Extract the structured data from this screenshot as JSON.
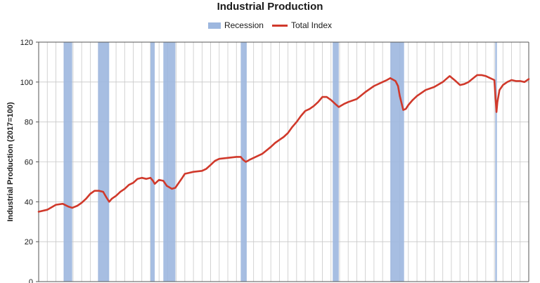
{
  "chart_data": {
    "type": "line",
    "title": "Industrial Production",
    "xlabel": "",
    "ylabel": "Industrial Production (2017=100)",
    "ylim": [
      0,
      120
    ],
    "yticks": [
      0,
      20,
      40,
      60,
      80,
      100,
      120
    ],
    "xlim": [
      1967,
      2024
    ],
    "grid": true,
    "legend_position": "top-center",
    "legend": [
      {
        "name": "Recession",
        "kind": "band",
        "color": "#9db7df"
      },
      {
        "name": "Total Index",
        "kind": "line",
        "color": "#d0392b"
      }
    ],
    "recessions": [
      [
        1969.9,
        1970.9
      ],
      [
        1973.9,
        1975.2
      ],
      [
        1980.0,
        1980.5
      ],
      [
        1981.5,
        1982.9
      ],
      [
        1990.5,
        1991.2
      ],
      [
        2001.2,
        2001.9
      ],
      [
        2007.9,
        2009.5
      ],
      [
        2020.1,
        2020.3
      ]
    ],
    "series": [
      {
        "name": "Total Index",
        "color": "#d0392b",
        "x": [
          1967.0,
          1968.0,
          1969.0,
          1969.8,
          1970.5,
          1970.9,
          1971.5,
          1972.0,
          1972.5,
          1973.0,
          1973.5,
          1974.0,
          1974.5,
          1974.9,
          1975.2,
          1975.5,
          1976.0,
          1976.5,
          1977.0,
          1977.5,
          1978.0,
          1978.5,
          1979.0,
          1979.5,
          1980.0,
          1980.3,
          1980.5,
          1981.0,
          1981.5,
          1981.9,
          1982.5,
          1982.9,
          1983.3,
          1983.7,
          1984.0,
          1984.5,
          1985.0,
          1986.0,
          1986.5,
          1987.0,
          1987.5,
          1988.0,
          1989.0,
          1990.0,
          1990.5,
          1990.8,
          1991.1,
          1991.5,
          1992.0,
          1993.0,
          1994.0,
          1994.5,
          1995.0,
          1995.5,
          1996.0,
          1996.5,
          1997.0,
          1997.5,
          1998.0,
          1998.5,
          1999.0,
          1999.5,
          2000.0,
          2000.5,
          2001.0,
          2001.5,
          2001.9,
          2002.5,
          2003.0,
          2004.0,
          2005.0,
          2006.0,
          2007.0,
          2007.5,
          2007.9,
          2008.5,
          2008.8,
          2009.0,
          2009.4,
          2009.7,
          2010.0,
          2010.5,
          2011.0,
          2012.0,
          2013.0,
          2014.0,
          2014.8,
          2015.5,
          2016.0,
          2016.5,
          2017.0,
          2018.0,
          2018.5,
          2019.0,
          2019.5,
          2020.0,
          2020.25,
          2020.35,
          2020.6,
          2021.0,
          2021.5,
          2022.0,
          2022.5,
          2023.0,
          2023.5,
          2024.0
        ],
        "values": [
          35.0,
          36.0,
          38.5,
          39.0,
          37.5,
          37.0,
          38.0,
          39.5,
          41.5,
          44.0,
          45.5,
          45.5,
          45.0,
          42.0,
          40.0,
          41.5,
          43.0,
          45.0,
          46.5,
          48.5,
          49.5,
          51.5,
          52.0,
          51.5,
          52.0,
          50.5,
          49.0,
          51.0,
          50.5,
          48.0,
          46.5,
          47.0,
          49.5,
          52.0,
          54.0,
          54.5,
          55.0,
          55.5,
          56.5,
          58.5,
          60.5,
          61.5,
          62.0,
          62.5,
          62.5,
          61.0,
          60.0,
          61.0,
          62.0,
          64.0,
          67.5,
          69.5,
          71.0,
          72.5,
          74.5,
          77.5,
          80.0,
          83.0,
          85.5,
          86.5,
          88.0,
          90.0,
          92.5,
          92.5,
          91.0,
          89.0,
          87.5,
          89.0,
          90.0,
          91.5,
          95.0,
          98.0,
          100.0,
          101.0,
          102.0,
          100.5,
          98.0,
          93.0,
          86.0,
          86.5,
          88.5,
          91.0,
          93.0,
          96.0,
          97.5,
          100.0,
          103.0,
          100.5,
          98.5,
          99.0,
          100.0,
          103.5,
          103.5,
          103.0,
          102.0,
          101.0,
          85.0,
          90.0,
          96.0,
          98.5,
          100.0,
          101.0,
          100.5,
          100.5,
          100.0,
          101.5
        ]
      }
    ]
  }
}
